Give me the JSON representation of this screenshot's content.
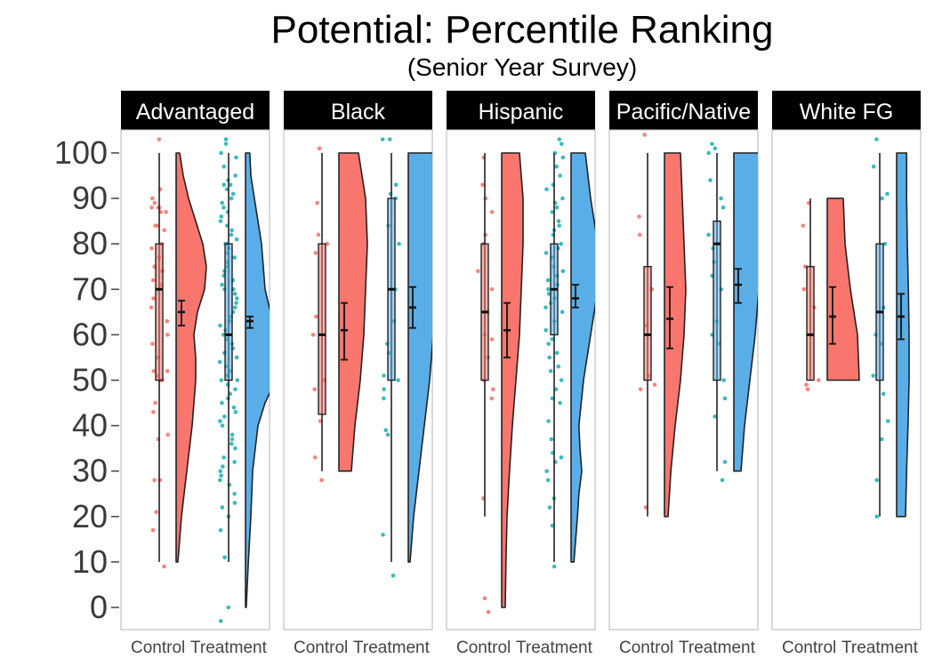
{
  "chart_data": {
    "type": "raincloud",
    "title": "Potential: Percentile Ranking",
    "subtitle": "(Senior Year Survey)",
    "xlabel": "",
    "ylabel": "",
    "ylim": [
      0,
      100
    ],
    "yticks": [
      0,
      10,
      20,
      30,
      40,
      50,
      60,
      70,
      80,
      90,
      100
    ],
    "categories": [
      "Control",
      "Treatment"
    ],
    "colors": {
      "Control": "#f8766d",
      "Treatment": "#5aaee8",
      "control_points": "#f8766d",
      "treatment_points": "#22b5b5"
    },
    "panels": [
      {
        "name": "Advantaged",
        "groups": [
          {
            "group": "Control",
            "box": {
              "min": 10,
              "q1": 50,
              "median": 70,
              "q3": 80,
              "max": 100
            },
            "mean": 65,
            "ci": [
              62,
              67.5
            ],
            "range": [
              10,
              100
            ],
            "density": [
              [
                10,
                0.05
              ],
              [
                20,
                0.15
              ],
              [
                30,
                0.3
              ],
              [
                40,
                0.45
              ],
              [
                50,
                0.55
              ],
              [
                55,
                0.55
              ],
              [
                60,
                0.5
              ],
              [
                65,
                0.6
              ],
              [
                70,
                0.8
              ],
              [
                75,
                0.85
              ],
              [
                80,
                0.75
              ],
              [
                85,
                0.55
              ],
              [
                90,
                0.35
              ],
              [
                95,
                0.2
              ],
              [
                100,
                0.1
              ]
            ],
            "points": [
              103,
              92,
              90,
              89,
              88,
              88,
              88,
              87,
              87,
              84,
              84,
              83,
              80,
              79,
              77,
              75,
              74,
              72,
              71,
              70,
              68,
              66,
              63,
              60,
              58,
              55,
              52,
              52,
              51,
              50,
              50,
              45,
              43,
              38,
              37,
              28,
              28,
              21,
              17,
              9
            ]
          },
          {
            "group": "Treatment",
            "box": {
              "min": 10,
              "q1": 50,
              "median": 60,
              "q3": 80,
              "max": 100
            },
            "mean": 63,
            "ci": [
              61.5,
              64
            ],
            "range": [
              0,
              100
            ],
            "density": [
              [
                0,
                0.02
              ],
              [
                10,
                0.08
              ],
              [
                20,
                0.15
              ],
              [
                30,
                0.2
              ],
              [
                40,
                0.35
              ],
              [
                45,
                0.55
              ],
              [
                50,
                0.85
              ],
              [
                55,
                0.9
              ],
              [
                60,
                0.85
              ],
              [
                65,
                0.7
              ],
              [
                70,
                0.55
              ],
              [
                75,
                0.5
              ],
              [
                80,
                0.45
              ],
              [
                85,
                0.35
              ],
              [
                90,
                0.25
              ],
              [
                95,
                0.15
              ],
              [
                100,
                0.12
              ]
            ],
            "points": [
              103,
              102,
              100,
              99,
              97,
              95,
              94,
              93,
              93,
              92,
              91,
              90,
              89,
              88,
              87,
              86,
              85,
              84,
              83,
              82,
              81,
              80,
              80,
              79,
              78,
              77,
              76,
              75,
              74,
              73,
              72,
              71,
              70,
              70,
              69,
              68,
              67,
              66,
              65,
              64,
              63,
              62,
              61,
              60,
              60,
              59,
              58,
              57,
              56,
              55,
              54,
              53,
              52,
              51,
              50,
              50,
              49,
              48,
              47,
              46,
              45,
              44,
              43,
              42,
              41,
              40,
              38,
              37,
              36,
              35,
              33,
              32,
              31,
              30,
              29,
              28,
              27,
              25,
              23,
              22,
              20,
              17,
              11,
              0,
              -3
            ]
          }
        ]
      },
      {
        "name": "Black",
        "groups": [
          {
            "group": "Control",
            "box": {
              "min": 30,
              "q1": 42.5,
              "median": 60,
              "q3": 80,
              "max": 100
            },
            "mean": 61,
            "ci": [
              54.5,
              67
            ],
            "range": [
              30,
              100
            ],
            "density": [
              [
                30,
                0.35
              ],
              [
                40,
                0.45
              ],
              [
                50,
                0.6
              ],
              [
                60,
                0.7
              ],
              [
                70,
                0.75
              ],
              [
                80,
                0.8
              ],
              [
                90,
                0.75
              ],
              [
                100,
                0.55
              ]
            ],
            "points": [
              101,
              89,
              82,
              80,
              78,
              64,
              60,
              50,
              48,
              41,
              33,
              28
            ]
          },
          {
            "group": "Treatment",
            "box": {
              "min": 10,
              "q1": 50,
              "median": 70,
              "q3": 90,
              "max": 100
            },
            "mean": 66,
            "ci": [
              61.5,
              70.5
            ],
            "range": [
              10,
              100
            ],
            "density": [
              [
                10,
                0.05
              ],
              [
                20,
                0.15
              ],
              [
                30,
                0.3
              ],
              [
                40,
                0.45
              ],
              [
                50,
                0.6
              ],
              [
                60,
                0.7
              ],
              [
                70,
                0.75
              ],
              [
                80,
                0.75
              ],
              [
                90,
                0.75
              ],
              [
                100,
                0.7
              ]
            ],
            "points": [
              103,
              103,
              93,
              91,
              90,
              84,
              80,
              70,
              63,
              58,
              56,
              51,
              50,
              48,
              46,
              39,
              38,
              16,
              7
            ]
          }
        ]
      },
      {
        "name": "Hispanic",
        "groups": [
          {
            "group": "Control",
            "box": {
              "min": 20,
              "q1": 50,
              "median": 65,
              "q3": 80,
              "max": 100
            },
            "mean": 61,
            "ci": [
              55,
              67
            ],
            "range": [
              0,
              100
            ],
            "density": [
              [
                0,
                0.1
              ],
              [
                10,
                0.12
              ],
              [
                20,
                0.15
              ],
              [
                30,
                0.22
              ],
              [
                40,
                0.3
              ],
              [
                50,
                0.4
              ],
              [
                60,
                0.5
              ],
              [
                70,
                0.55
              ],
              [
                80,
                0.6
              ],
              [
                90,
                0.6
              ],
              [
                100,
                0.5
              ]
            ],
            "points": [
              99,
              93,
              90,
              87,
              82,
              80,
              74,
              70,
              65,
              60,
              59,
              55,
              50,
              48,
              46,
              24,
              2,
              -1
            ]
          },
          {
            "group": "Treatment",
            "box": {
              "min": 10,
              "q1": 60,
              "median": 70,
              "q3": 80,
              "max": 100
            },
            "mean": 68,
            "ci": [
              66,
              71
            ],
            "range": [
              10,
              100
            ],
            "density": [
              [
                10,
                0.08
              ],
              [
                20,
                0.18
              ],
              [
                25,
                0.22
              ],
              [
                30,
                0.3
              ],
              [
                35,
                0.25
              ],
              [
                40,
                0.22
              ],
              [
                50,
                0.35
              ],
              [
                60,
                0.55
              ],
              [
                70,
                0.75
              ],
              [
                75,
                0.8
              ],
              [
                80,
                0.75
              ],
              [
                90,
                0.55
              ],
              [
                100,
                0.4
              ]
            ],
            "points": [
              103,
              102,
              100,
              99,
              97,
              95,
              93,
              92,
              90,
              89,
              88,
              87,
              85,
              84,
              83,
              82,
              80,
              79,
              78,
              77,
              75,
              74,
              73,
              72,
              71,
              70,
              69,
              68,
              67,
              66,
              65,
              63,
              61,
              59,
              58,
              56,
              55,
              53,
              52,
              50,
              48,
              46,
              45,
              41,
              37,
              34,
              33,
              32,
              30,
              28,
              24,
              22,
              18,
              9
            ]
          }
        ]
      },
      {
        "name": "Pacific/Native",
        "groups": [
          {
            "group": "Control",
            "box": {
              "min": 20,
              "q1": 50,
              "median": 60,
              "q3": 75,
              "max": 100
            },
            "mean": 63.5,
            "ci": [
              57,
              70.5
            ],
            "range": [
              20,
              100
            ],
            "density": [
              [
                20,
                0.1
              ],
              [
                30,
                0.18
              ],
              [
                40,
                0.3
              ],
              [
                50,
                0.45
              ],
              [
                60,
                0.55
              ],
              [
                70,
                0.6
              ],
              [
                80,
                0.55
              ],
              [
                90,
                0.5
              ],
              [
                100,
                0.45
              ]
            ],
            "points": [
              104,
              86,
              82,
              70,
              62,
              51,
              49,
              48,
              22
            ]
          },
          {
            "group": "Treatment",
            "box": {
              "min": 30,
              "q1": 50,
              "median": 80,
              "q3": 85,
              "max": 100
            },
            "mean": 71,
            "ci": [
              67,
              74.5
            ],
            "range": [
              30,
              100
            ],
            "density": [
              [
                30,
                0.2
              ],
              [
                40,
                0.3
              ],
              [
                50,
                0.45
              ],
              [
                60,
                0.6
              ],
              [
                70,
                0.7
              ],
              [
                80,
                0.8
              ],
              [
                90,
                0.8
              ],
              [
                100,
                0.75
              ]
            ],
            "points": [
              102,
              101,
              100,
              94,
              90,
              88,
              82,
              80,
              79,
              76,
              73,
              70,
              63,
              60,
              58,
              50,
              46,
              42,
              32,
              28
            ]
          }
        ]
      },
      {
        "name": "White FG",
        "groups": [
          {
            "group": "Control",
            "box": {
              "min": 50,
              "q1": 50,
              "median": 60,
              "q3": 75,
              "max": 90
            },
            "mean": 64,
            "ci": [
              58,
              70.5
            ],
            "range": [
              50,
              90
            ],
            "density": [
              [
                50,
                0.9
              ],
              [
                60,
                0.85
              ],
              [
                70,
                0.65
              ],
              [
                80,
                0.5
              ],
              [
                90,
                0.45
              ]
            ],
            "points": [
              89,
              84,
              75,
              70,
              66,
              60,
              50,
              49,
              48
            ]
          },
          {
            "group": "Treatment",
            "box": {
              "min": 20,
              "q1": 50,
              "median": 65,
              "q3": 80,
              "max": 100
            },
            "mean": 64,
            "ci": [
              59,
              69
            ],
            "range": [
              20,
              100
            ],
            "density": [
              [
                20,
                0.25
              ],
              [
                30,
                0.28
              ],
              [
                40,
                0.32
              ],
              [
                50,
                0.35
              ],
              [
                60,
                0.35
              ],
              [
                70,
                0.33
              ],
              [
                80,
                0.3
              ],
              [
                90,
                0.28
              ],
              [
                100,
                0.28
              ]
            ],
            "points": [
              103,
              97,
              91,
              90,
              80,
              66,
              60,
              58,
              51,
              47,
              41,
              37,
              28,
              20
            ]
          }
        ]
      }
    ]
  }
}
